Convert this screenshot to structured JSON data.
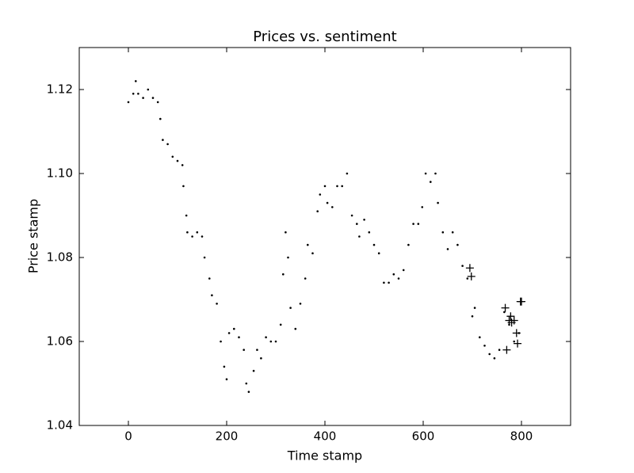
{
  "chart_data": {
    "type": "scatter",
    "title": "Prices vs. sentiment",
    "x_label": "Time stamp",
    "y_label": "Price stamp",
    "xlim": [
      -100,
      900
    ],
    "xticks": [
      0,
      200,
      400,
      600,
      800
    ],
    "ylim": [
      1.04,
      1.13
    ],
    "yticks": [
      1.04,
      1.06,
      1.08,
      {
        "value": 1.1,
        "label": "1.10"
      },
      1.12
    ],
    "series": [
      {
        "color": "#000000",
        "marker": "dot",
        "x": [
          0,
          10,
          15,
          20,
          30,
          40,
          50,
          60,
          65,
          70,
          80,
          90,
          100,
          110,
          112,
          118,
          120,
          130,
          140,
          150,
          155,
          165,
          170,
          180,
          188,
          195,
          200,
          205,
          215,
          225,
          235,
          240,
          245,
          255,
          262,
          270,
          280,
          290,
          300,
          310,
          315,
          320,
          325,
          330,
          340,
          350,
          360,
          365,
          375,
          385,
          390,
          400,
          405,
          415,
          425,
          435,
          445,
          455,
          465,
          470,
          480,
          490,
          500,
          510,
          520,
          530,
          540,
          550,
          560,
          570,
          580,
          590,
          598,
          605,
          615,
          625,
          630,
          640,
          650,
          660,
          670,
          680,
          690,
          700,
          705,
          715,
          725,
          735,
          745,
          755,
          765,
          775,
          785,
          795
        ],
        "values": [
          1.117,
          1.119,
          1.122,
          1.119,
          1.118,
          1.12,
          1.118,
          1.117,
          1.113,
          1.108,
          1.107,
          1.104,
          1.103,
          1.102,
          1.097,
          1.09,
          1.086,
          1.085,
          1.086,
          1.085,
          1.08,
          1.075,
          1.071,
          1.069,
          1.06,
          1.054,
          1.051,
          1.062,
          1.063,
          1.061,
          1.058,
          1.05,
          1.048,
          1.053,
          1.058,
          1.056,
          1.061,
          1.06,
          1.06,
          1.064,
          1.076,
          1.086,
          1.08,
          1.068,
          1.063,
          1.069,
          1.075,
          1.083,
          1.081,
          1.091,
          1.095,
          1.097,
          1.093,
          1.092,
          1.097,
          1.097,
          1.1,
          1.09,
          1.088,
          1.085,
          1.089,
          1.086,
          1.083,
          1.081,
          1.074,
          1.074,
          1.076,
          1.075,
          1.077,
          1.083,
          1.088,
          1.088,
          1.092,
          1.1,
          1.098,
          1.1,
          1.093,
          1.086,
          1.082,
          1.086,
          1.083,
          1.078,
          1.075,
          1.066,
          1.068,
          1.061,
          1.059,
          1.057,
          1.056,
          1.058,
          1.067,
          1.064,
          1.06,
          1.062
        ]
      },
      {
        "color": "#000000",
        "marker": "plus",
        "x": [
          695,
          698,
          767,
          770,
          775,
          778,
          780,
          785,
          790,
          792,
          798,
          800
        ],
        "values": [
          1.0775,
          1.0755,
          1.068,
          1.058,
          1.065,
          1.066,
          1.0645,
          1.065,
          1.062,
          1.0595,
          1.0695,
          1.0695
        ]
      }
    ]
  }
}
